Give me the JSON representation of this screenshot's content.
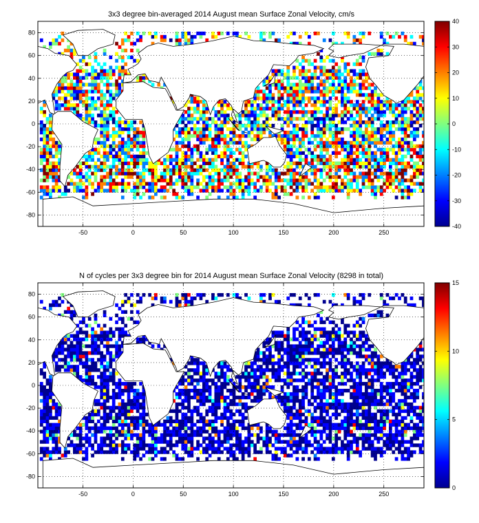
{
  "colormap": [
    "#00008f",
    "#0000ff",
    "#0080ff",
    "#00ffff",
    "#80ff80",
    "#ffff00",
    "#ff8000",
    "#ff0000",
    "#800000"
  ],
  "chart_data": [
    {
      "type": "heatmap",
      "title": "3x3 degree bin-averaged 2014 August mean Surface Zonal Velocity, cm/s",
      "xlim": [
        -95,
        290
      ],
      "ylim": [
        -90,
        90
      ],
      "xticks": [
        -50,
        0,
        50,
        100,
        150,
        200,
        250
      ],
      "yticks": [
        -80,
        -60,
        -40,
        -20,
        0,
        20,
        40,
        60,
        80
      ],
      "xtick_labels": [
        "-50",
        "0",
        "50",
        "100",
        "150",
        "200",
        "250"
      ],
      "ytick_labels": [
        "-80",
        "-60",
        "-40",
        "-20",
        "0",
        "20",
        "40",
        "60",
        "80"
      ],
      "bin_size_deg": 3,
      "grid": true,
      "clim": [
        -40,
        40
      ],
      "colorbar_ticks": [
        -40,
        -30,
        -20,
        -10,
        0,
        10,
        20,
        30,
        40
      ],
      "colorbar_labels": [
        "-40",
        "-30",
        "-20",
        "-10",
        "0",
        "10",
        "20",
        "30",
        "40"
      ],
      "colorbar_placement": "right"
    },
    {
      "type": "heatmap",
      "title": "N of cycles per 3x3 degree bin for 2014 August mean Surface Zonal Velocity (8298 in total)",
      "xlim": [
        -95,
        290
      ],
      "ylim": [
        -90,
        90
      ],
      "xticks": [
        -50,
        0,
        50,
        100,
        150,
        200,
        250
      ],
      "yticks": [
        -80,
        -60,
        -40,
        -20,
        0,
        20,
        40,
        60,
        80
      ],
      "xtick_labels": [
        "-50",
        "0",
        "50",
        "100",
        "150",
        "200",
        "250"
      ],
      "ytick_labels": [
        "-80",
        "-60",
        "-40",
        "-20",
        "0",
        "20",
        "40",
        "60",
        "80"
      ],
      "bin_size_deg": 3,
      "grid": true,
      "clim": [
        0,
        15
      ],
      "colorbar_ticks": [
        0,
        5,
        10,
        15
      ],
      "colorbar_labels": [
        "0",
        "5",
        "10",
        "15"
      ],
      "colorbar_placement": "right"
    }
  ]
}
